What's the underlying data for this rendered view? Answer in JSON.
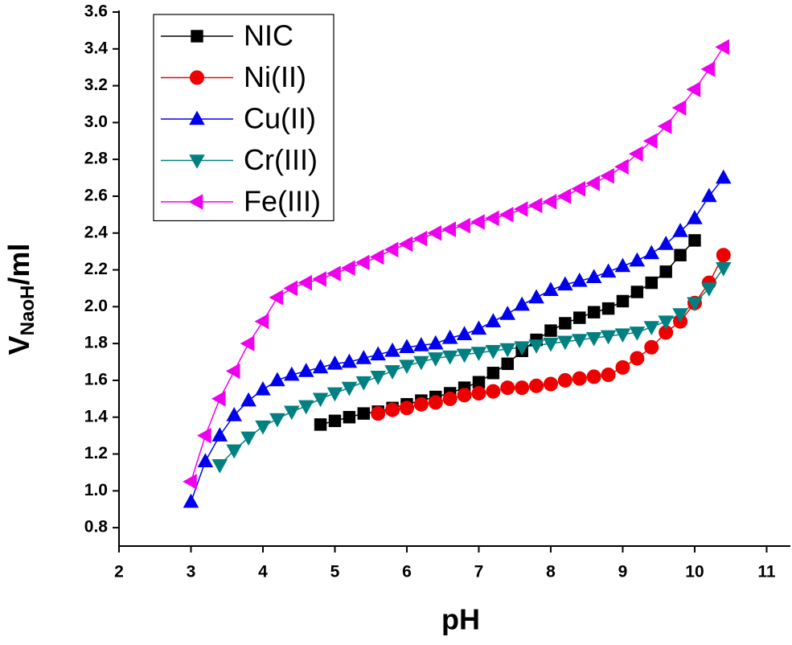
{
  "chart_data": {
    "type": "line",
    "xlabel": "pH",
    "ylabel": [
      "V",
      "NaoH",
      "/ml"
    ],
    "xlim": [
      2,
      11.33
    ],
    "ylim": [
      0.7,
      3.6
    ],
    "xticks": [
      2,
      3,
      4,
      5,
      6,
      7,
      8,
      9,
      10,
      11
    ],
    "yticks": [
      0.8,
      {
        "value": 1,
        "label": "1.0"
      },
      1.2,
      1.4,
      1.6,
      1.8,
      {
        "value": 2,
        "label": "2.0"
      },
      2.2,
      2.4,
      2.6,
      2.8,
      {
        "value": 3,
        "label": "3.0"
      },
      3.2,
      3.4,
      3.6
    ],
    "legend": "upper left",
    "series": [
      {
        "name": "NIC",
        "color": "#000000",
        "marker": "square",
        "x": [
          4.8,
          5.0,
          5.2,
          5.4,
          5.6,
          5.8,
          6.0,
          6.2,
          6.4,
          6.6,
          6.8,
          7.0,
          7.2,
          7.4,
          7.6,
          7.8,
          8.0,
          8.2,
          8.4,
          8.6,
          8.8,
          9.0,
          9.2,
          9.4,
          9.6,
          9.8,
          10.0
        ],
        "values": [
          1.36,
          1.38,
          1.4,
          1.42,
          1.43,
          1.45,
          1.47,
          1.49,
          1.51,
          1.53,
          1.56,
          1.59,
          1.64,
          1.69,
          1.76,
          1.82,
          1.87,
          1.91,
          1.94,
          1.97,
          1.99,
          2.03,
          2.08,
          2.13,
          2.19,
          2.28,
          2.36
        ]
      },
      {
        "name": "Ni(II)",
        "color": "#ee0000",
        "marker": "circle",
        "x": [
          5.6,
          5.8,
          6.0,
          6.2,
          6.4,
          6.6,
          6.8,
          7.0,
          7.2,
          7.4,
          7.6,
          7.8,
          8.0,
          8.2,
          8.4,
          8.6,
          8.8,
          9.0,
          9.2,
          9.4,
          9.6,
          9.8,
          10.0,
          10.2,
          10.4
        ],
        "values": [
          1.42,
          1.44,
          1.45,
          1.47,
          1.48,
          1.5,
          1.52,
          1.53,
          1.54,
          1.56,
          1.56,
          1.57,
          1.58,
          1.6,
          1.61,
          1.62,
          1.63,
          1.67,
          1.72,
          1.78,
          1.86,
          1.92,
          2.02,
          2.13,
          2.28
        ]
      },
      {
        "name": "Cu(II)",
        "color": "#0000ee",
        "marker": "triangle-up",
        "x": [
          3.0,
          3.2,
          3.4,
          3.6,
          3.8,
          4.0,
          4.2,
          4.4,
          4.6,
          4.8,
          5.0,
          5.2,
          5.4,
          5.6,
          5.8,
          6.0,
          6.2,
          6.4,
          6.6,
          6.8,
          7.0,
          7.2,
          7.4,
          7.6,
          7.8,
          8.0,
          8.2,
          8.4,
          8.6,
          8.8,
          9.0,
          9.2,
          9.4,
          9.6,
          9.8,
          10.0,
          10.2,
          10.4
        ],
        "values": [
          0.94,
          1.16,
          1.3,
          1.41,
          1.49,
          1.55,
          1.6,
          1.63,
          1.65,
          1.67,
          1.69,
          1.7,
          1.72,
          1.74,
          1.76,
          1.78,
          1.79,
          1.8,
          1.83,
          1.85,
          1.88,
          1.92,
          1.96,
          2.01,
          2.05,
          2.09,
          2.12,
          2.14,
          2.16,
          2.19,
          2.22,
          2.25,
          2.29,
          2.34,
          2.41,
          2.48,
          2.6,
          2.7
        ]
      },
      {
        "name": "Cr(III)",
        "color": "#008080",
        "marker": "triangle-down",
        "x": [
          3.4,
          3.6,
          3.8,
          4.0,
          4.2,
          4.4,
          4.6,
          4.8,
          5.0,
          5.2,
          5.4,
          5.6,
          5.8,
          6.0,
          6.2,
          6.4,
          6.6,
          6.8,
          7.0,
          7.2,
          7.4,
          7.6,
          7.8,
          8.0,
          8.2,
          8.4,
          8.6,
          8.8,
          9.0,
          9.2,
          9.4,
          9.6,
          9.8,
          10.0,
          10.2,
          10.4
        ],
        "values": [
          1.14,
          1.22,
          1.29,
          1.35,
          1.39,
          1.43,
          1.46,
          1.5,
          1.53,
          1.56,
          1.59,
          1.62,
          1.65,
          1.68,
          1.7,
          1.72,
          1.73,
          1.74,
          1.75,
          1.76,
          1.77,
          1.78,
          1.79,
          1.8,
          1.81,
          1.82,
          1.83,
          1.84,
          1.85,
          1.86,
          1.89,
          1.92,
          1.96,
          2.02,
          2.1,
          2.21
        ]
      },
      {
        "name": "Fe(III)",
        "color": "#ee00ee",
        "marker": "triangle-left",
        "x": [
          3.0,
          3.2,
          3.4,
          3.6,
          3.8,
          4.0,
          4.2,
          4.4,
          4.6,
          4.8,
          5.0,
          5.2,
          5.4,
          5.6,
          5.8,
          6.0,
          6.2,
          6.4,
          6.6,
          6.8,
          7.0,
          7.2,
          7.4,
          7.6,
          7.8,
          8.0,
          8.2,
          8.4,
          8.6,
          8.8,
          9.0,
          9.2,
          9.4,
          9.6,
          9.8,
          10.0,
          10.2,
          10.4
        ],
        "values": [
          1.05,
          1.3,
          1.5,
          1.65,
          1.8,
          1.92,
          2.05,
          2.1,
          2.13,
          2.15,
          2.18,
          2.21,
          2.24,
          2.27,
          2.31,
          2.34,
          2.37,
          2.4,
          2.42,
          2.44,
          2.46,
          2.48,
          2.5,
          2.53,
          2.55,
          2.57,
          2.6,
          2.64,
          2.67,
          2.71,
          2.76,
          2.83,
          2.9,
          2.98,
          3.08,
          3.18,
          3.29,
          3.41
        ]
      }
    ]
  }
}
